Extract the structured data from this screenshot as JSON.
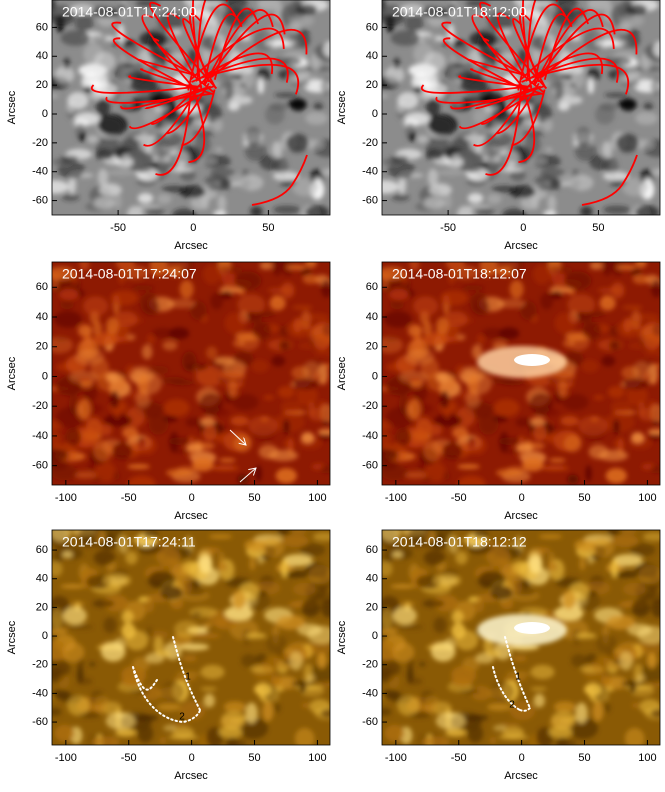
{
  "panels": [
    {
      "title": "2014-08-01T17:24:00",
      "xlabel": "Arcsec",
      "ylabel": "Arcsec",
      "xlim": [
        -94,
        91
      ],
      "ylim": [
        -70,
        79
      ],
      "xticks": [
        -50,
        0,
        50
      ],
      "yticks": [
        60,
        40,
        20,
        0,
        -20,
        -40,
        -60
      ]
    },
    {
      "title": "2014-08-01T18:12:00",
      "xlabel": "Arcsec",
      "ylabel": "Arcsec",
      "xlim": [
        -94,
        91
      ],
      "ylim": [
        -70,
        79
      ],
      "xticks": [
        -50,
        0,
        50
      ],
      "yticks": [
        60,
        40,
        20,
        0,
        -20,
        -40,
        -60
      ]
    },
    {
      "title": "2014-08-01T17:24:07",
      "xlabel": "Arcsec",
      "ylabel": "Arcsec",
      "xlim": [
        -111,
        110
      ],
      "ylim": [
        -73,
        77
      ],
      "xticks": [
        -100,
        -50,
        0,
        50,
        100
      ],
      "yticks": [
        60,
        40,
        20,
        0,
        -20,
        -40,
        -60
      ]
    },
    {
      "title": "2014-08-01T18:12:07",
      "xlabel": "Arcsec",
      "ylabel": "Arcsec",
      "xlim": [
        -111,
        110
      ],
      "ylim": [
        -73,
        77
      ],
      "xticks": [
        -100,
        -50,
        0,
        50,
        100
      ],
      "yticks": [
        60,
        40,
        20,
        0,
        -20,
        -40,
        -60
      ]
    },
    {
      "title": "2014-08-01T17:24:11",
      "xlabel": "Arcsec",
      "ylabel": "Arcsec",
      "xlim": [
        -111,
        110
      ],
      "ylim": [
        -76,
        74
      ],
      "xticks": [
        -100,
        -50,
        0,
        50,
        100
      ],
      "yticks": [
        60,
        40,
        20,
        0,
        -20,
        -40,
        -60
      ],
      "annotations": [
        "1",
        "2"
      ]
    },
    {
      "title": "2014-08-01T18:12:12",
      "xlabel": "Arcsec",
      "ylabel": "Arcsec",
      "xlim": [
        -111,
        110
      ],
      "ylim": [
        -76,
        74
      ],
      "xticks": [
        -100,
        -50,
        0,
        50,
        100
      ],
      "yticks": [
        60,
        40,
        20,
        0,
        -20,
        -40,
        -60
      ],
      "annotations": [
        "1",
        "2"
      ]
    }
  ]
}
